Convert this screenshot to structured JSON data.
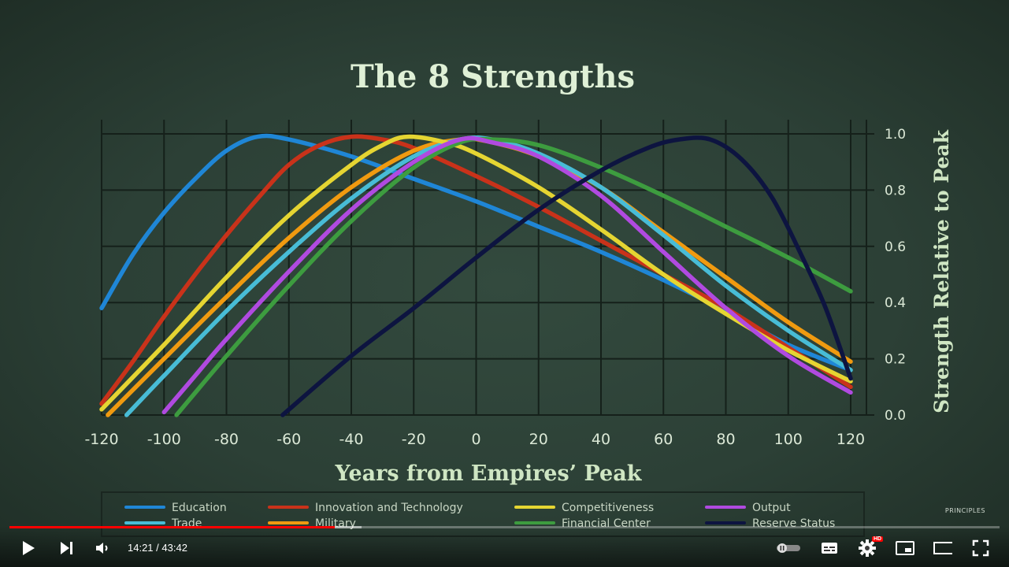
{
  "video": {
    "current_time": "14:21",
    "separator": " / ",
    "duration": "43:42",
    "progress_fraction": 0.3283,
    "buffer_fraction": 0.356,
    "watermark": "PRINCIPLES",
    "hd_badge": "HD"
  },
  "chart_data": {
    "type": "line",
    "title": "The 8 Strengths",
    "xlabel": "Years from Empires’ Peak",
    "ylabel": "Strength Relative to Peak",
    "xlim": [
      -120,
      120
    ],
    "ylim": [
      0,
      1
    ],
    "xticks": [
      -120,
      -100,
      -80,
      -60,
      -40,
      -20,
      0,
      20,
      40,
      60,
      80,
      100,
      120
    ],
    "yticks": [
      0.0,
      0.2,
      0.4,
      0.6,
      0.8,
      1.0
    ],
    "grid": true,
    "legend_position": "bottom",
    "series": [
      {
        "name": "Education",
        "color": "#1f86d6",
        "x": [
          -120,
          -110,
          -100,
          -90,
          -80,
          -70,
          -60,
          -40,
          -20,
          0,
          20,
          40,
          60,
          80,
          100,
          120
        ],
        "y": [
          0.38,
          0.57,
          0.72,
          0.84,
          0.94,
          0.99,
          0.98,
          0.92,
          0.84,
          0.76,
          0.67,
          0.58,
          0.48,
          0.37,
          0.25,
          0.16
        ]
      },
      {
        "name": "Innovation and Technology",
        "color": "#c9321a",
        "x": [
          -120,
          -110,
          -100,
          -90,
          -80,
          -70,
          -60,
          -50,
          -40,
          -30,
          -20,
          0,
          20,
          40,
          60,
          80,
          100,
          120
        ],
        "y": [
          0.04,
          0.19,
          0.35,
          0.5,
          0.64,
          0.77,
          0.89,
          0.96,
          0.99,
          0.98,
          0.95,
          0.85,
          0.74,
          0.62,
          0.5,
          0.38,
          0.24,
          0.1
        ]
      },
      {
        "name": "Competitiveness",
        "color": "#e5d532",
        "x": [
          -120,
          -100,
          -80,
          -60,
          -40,
          -30,
          -22,
          -10,
          0,
          20,
          40,
          60,
          80,
          100,
          120
        ],
        "y": [
          0.02,
          0.25,
          0.49,
          0.71,
          0.89,
          0.96,
          0.99,
          0.97,
          0.93,
          0.81,
          0.66,
          0.5,
          0.36,
          0.23,
          0.12
        ]
      },
      {
        "name": "Output",
        "color": "#b04ae0",
        "x": [
          -100,
          -90,
          -80,
          -60,
          -40,
          -20,
          -5,
          5,
          20,
          40,
          60,
          80,
          100,
          120
        ],
        "y": [
          0.01,
          0.14,
          0.27,
          0.51,
          0.73,
          0.9,
          0.98,
          0.97,
          0.92,
          0.78,
          0.58,
          0.38,
          0.21,
          0.08
        ]
      },
      {
        "name": "Trade",
        "color": "#48bcd6",
        "x": [
          -112,
          -100,
          -80,
          -60,
          -40,
          -20,
          -5,
          5,
          20,
          40,
          60,
          80,
          100,
          120
        ],
        "y": [
          0.0,
          0.14,
          0.37,
          0.58,
          0.77,
          0.92,
          0.98,
          0.98,
          0.93,
          0.81,
          0.64,
          0.46,
          0.3,
          0.16
        ]
      },
      {
        "name": "Military",
        "color": "#f09a10",
        "x": [
          -118,
          -100,
          -80,
          -60,
          -40,
          -20,
          -5,
          5,
          20,
          40,
          60,
          80,
          100,
          120
        ],
        "y": [
          0.0,
          0.2,
          0.42,
          0.63,
          0.81,
          0.94,
          0.98,
          0.97,
          0.92,
          0.81,
          0.65,
          0.49,
          0.33,
          0.19
        ]
      },
      {
        "name": "Financial Center",
        "color": "#3d9c3f",
        "x": [
          -96,
          -80,
          -60,
          -40,
          -20,
          -5,
          5,
          20,
          40,
          60,
          80,
          100,
          120
        ],
        "y": [
          0.0,
          0.21,
          0.46,
          0.69,
          0.88,
          0.97,
          0.98,
          0.96,
          0.88,
          0.78,
          0.67,
          0.56,
          0.44
        ]
      },
      {
        "name": "Reserve Status",
        "color": "#0d1440",
        "x": [
          -62,
          -40,
          -20,
          0,
          20,
          40,
          55,
          65,
          75,
          85,
          95,
          105,
          112,
          120
        ],
        "y": [
          0.0,
          0.21,
          0.38,
          0.56,
          0.73,
          0.87,
          0.95,
          0.98,
          0.98,
          0.91,
          0.77,
          0.55,
          0.38,
          0.13
        ]
      }
    ]
  }
}
